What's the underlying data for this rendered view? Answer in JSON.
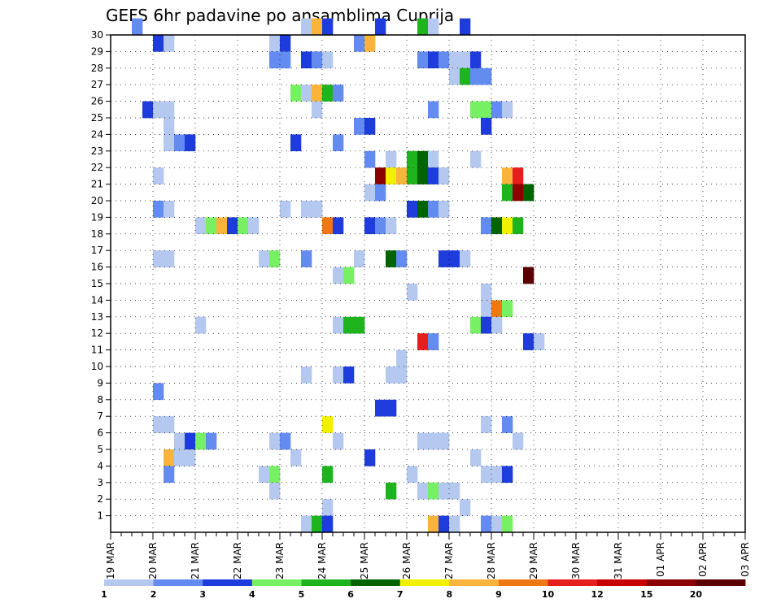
{
  "chart_data": {
    "type": "heatmap",
    "title": "GEFS 6hr padavine po ansamblima Cuprija",
    "x_tick_labels": [
      "19 MAR",
      "20 MAR",
      "21 MAR",
      "22 MAR",
      "23 MAR",
      "24 MAR",
      "25 MAR",
      "26 MAR",
      "27 MAR",
      "28 MAR",
      "29 MAR",
      "30 MAR",
      "31 MAR",
      "01 APR",
      "02 APR",
      "03 APR"
    ],
    "y_tick_labels": [
      "1",
      "2",
      "3",
      "4",
      "5",
      "6",
      "7",
      "8",
      "9",
      "10",
      "11",
      "12",
      "13",
      "14",
      "15",
      "16",
      "17",
      "18",
      "19",
      "20",
      "21",
      "22",
      "23",
      "24",
      "25",
      "26",
      "27",
      "28",
      "29",
      "30"
    ],
    "y_range": [
      0,
      30
    ],
    "x_steps_per_day": 4,
    "grid": true,
    "legend_placement": "bottom",
    "legend_labels": [
      "1",
      "2",
      "3",
      "4",
      "5",
      "6",
      "7",
      "8",
      "9",
      "10",
      "12",
      "15",
      "20"
    ],
    "colors": [
      "#b4c8f0",
      "#648cf0",
      "#1e3cdc",
      "#78f064",
      "#1eb41e",
      "#006400",
      "#f0f000",
      "#fab43c",
      "#f07814",
      "#e61e1e",
      "#c80000",
      "#8c0000",
      "#5a0000"
    ],
    "cells": [
      [
        2,
        30,
        2
      ],
      [
        18,
        30,
        1
      ],
      [
        19,
        30,
        8
      ],
      [
        20,
        30,
        3
      ],
      [
        25,
        30,
        3
      ],
      [
        29,
        30,
        5
      ],
      [
        30,
        30,
        1
      ],
      [
        33,
        30,
        3
      ],
      [
        4,
        29,
        3
      ],
      [
        5,
        29,
        1
      ],
      [
        15,
        29,
        1
      ],
      [
        16,
        29,
        3
      ],
      [
        23,
        29,
        2
      ],
      [
        24,
        29,
        8
      ],
      [
        15,
        28,
        2
      ],
      [
        16,
        28,
        2
      ],
      [
        18,
        28,
        3
      ],
      [
        19,
        28,
        2
      ],
      [
        20,
        28,
        1
      ],
      [
        29,
        28,
        2
      ],
      [
        30,
        28,
        3
      ],
      [
        31,
        28,
        2
      ],
      [
        32,
        28,
        1
      ],
      [
        33,
        28,
        1
      ],
      [
        34,
        28,
        3
      ],
      [
        32,
        27,
        1
      ],
      [
        33,
        27,
        5
      ],
      [
        34,
        27,
        2
      ],
      [
        35,
        27,
        2
      ],
      [
        17,
        26,
        4
      ],
      [
        18,
        26,
        1
      ],
      [
        19,
        26,
        8
      ],
      [
        20,
        26,
        5
      ],
      [
        21,
        26,
        2
      ],
      [
        3,
        25,
        3
      ],
      [
        4,
        25,
        1
      ],
      [
        5,
        25,
        1
      ],
      [
        19,
        25,
        1
      ],
      [
        30,
        25,
        2
      ],
      [
        34,
        25,
        4
      ],
      [
        35,
        25,
        4
      ],
      [
        36,
        25,
        2
      ],
      [
        37,
        25,
        1
      ],
      [
        5,
        24,
        1
      ],
      [
        23,
        24,
        2
      ],
      [
        24,
        24,
        3
      ],
      [
        35,
        24,
        3
      ],
      [
        5,
        23,
        1
      ],
      [
        6,
        23,
        2
      ],
      [
        7,
        23,
        3
      ],
      [
        17,
        23,
        3
      ],
      [
        21,
        23,
        2
      ],
      [
        24,
        22,
        2
      ],
      [
        26,
        22,
        1
      ],
      [
        28,
        22,
        5
      ],
      [
        29,
        22,
        6
      ],
      [
        30,
        22,
        1
      ],
      [
        34,
        22,
        1
      ],
      [
        4,
        21,
        1
      ],
      [
        25,
        21,
        12
      ],
      [
        26,
        21,
        7
      ],
      [
        27,
        21,
        8
      ],
      [
        28,
        21,
        5
      ],
      [
        29,
        21,
        6
      ],
      [
        30,
        21,
        3
      ],
      [
        31,
        21,
        1
      ],
      [
        37,
        21,
        8
      ],
      [
        38,
        21,
        10
      ],
      [
        24,
        20,
        1
      ],
      [
        25,
        20,
        2
      ],
      [
        37,
        20,
        5
      ],
      [
        38,
        20,
        12
      ],
      [
        39,
        20,
        6
      ],
      [
        4,
        19,
        2
      ],
      [
        5,
        19,
        1
      ],
      [
        16,
        19,
        1
      ],
      [
        18,
        19,
        1
      ],
      [
        19,
        19,
        1
      ],
      [
        28,
        19,
        3
      ],
      [
        29,
        19,
        6
      ],
      [
        30,
        19,
        2
      ],
      [
        31,
        19,
        1
      ],
      [
        8,
        18,
        1
      ],
      [
        9,
        18,
        4
      ],
      [
        10,
        18,
        8
      ],
      [
        11,
        18,
        3
      ],
      [
        12,
        18,
        4
      ],
      [
        13,
        18,
        1
      ],
      [
        20,
        18,
        9
      ],
      [
        21,
        18,
        3
      ],
      [
        24,
        18,
        3
      ],
      [
        25,
        18,
        2
      ],
      [
        26,
        18,
        1
      ],
      [
        35,
        18,
        2
      ],
      [
        36,
        18,
        6
      ],
      [
        37,
        18,
        7
      ],
      [
        38,
        18,
        5
      ],
      [
        4,
        16,
        1
      ],
      [
        5,
        16,
        1
      ],
      [
        14,
        16,
        1
      ],
      [
        15,
        16,
        4
      ],
      [
        18,
        16,
        2
      ],
      [
        23,
        16,
        1
      ],
      [
        26,
        16,
        6
      ],
      [
        27,
        16,
        2
      ],
      [
        31,
        16,
        3
      ],
      [
        32,
        16,
        3
      ],
      [
        33,
        16,
        1
      ],
      [
        21,
        15,
        1
      ],
      [
        22,
        15,
        4
      ],
      [
        39,
        15,
        13
      ],
      [
        28,
        14,
        1
      ],
      [
        35,
        14,
        1
      ],
      [
        35,
        13,
        1
      ],
      [
        36,
        13,
        9
      ],
      [
        37,
        13,
        4
      ],
      [
        8,
        12,
        1
      ],
      [
        21,
        12,
        1
      ],
      [
        22,
        12,
        5
      ],
      [
        23,
        12,
        5
      ],
      [
        34,
        12,
        4
      ],
      [
        35,
        12,
        3
      ],
      [
        36,
        12,
        1
      ],
      [
        29,
        11,
        10
      ],
      [
        30,
        11,
        2
      ],
      [
        39,
        11,
        3
      ],
      [
        40,
        11,
        1
      ],
      [
        27,
        10,
        1
      ],
      [
        18,
        9,
        1
      ],
      [
        21,
        9,
        1
      ],
      [
        22,
        9,
        3
      ],
      [
        26,
        9,
        1
      ],
      [
        27,
        9,
        1
      ],
      [
        4,
        8,
        2
      ],
      [
        25,
        7,
        3
      ],
      [
        26,
        7,
        3
      ],
      [
        4,
        6,
        1
      ],
      [
        5,
        6,
        1
      ],
      [
        20,
        6,
        7
      ],
      [
        35,
        6,
        1
      ],
      [
        37,
        6,
        2
      ],
      [
        6,
        5,
        1
      ],
      [
        7,
        5,
        3
      ],
      [
        8,
        5,
        4
      ],
      [
        9,
        5,
        2
      ],
      [
        15,
        5,
        1
      ],
      [
        16,
        5,
        2
      ],
      [
        21,
        5,
        1
      ],
      [
        29,
        5,
        1
      ],
      [
        30,
        5,
        1
      ],
      [
        31,
        5,
        1
      ],
      [
        38,
        5,
        1
      ],
      [
        5,
        4,
        8
      ],
      [
        6,
        4,
        1
      ],
      [
        7,
        4,
        1
      ],
      [
        17,
        4,
        1
      ],
      [
        24,
        4,
        3
      ],
      [
        34,
        4,
        1
      ],
      [
        5,
        3,
        2
      ],
      [
        14,
        3,
        1
      ],
      [
        15,
        3,
        4
      ],
      [
        20,
        3,
        5
      ],
      [
        28,
        3,
        1
      ],
      [
        35,
        3,
        1
      ],
      [
        36,
        3,
        1
      ],
      [
        37,
        3,
        3
      ],
      [
        15,
        2,
        1
      ],
      [
        26,
        2,
        5
      ],
      [
        29,
        2,
        1
      ],
      [
        30,
        2,
        4
      ],
      [
        31,
        2,
        1
      ],
      [
        32,
        2,
        1
      ],
      [
        20,
        1,
        1
      ],
      [
        33,
        1,
        1
      ],
      [
        18,
        0,
        1
      ],
      [
        19,
        0,
        5
      ],
      [
        20,
        0,
        3
      ],
      [
        30,
        0,
        8
      ],
      [
        31,
        0,
        3
      ],
      [
        32,
        0,
        1
      ],
      [
        35,
        0,
        2
      ],
      [
        36,
        0,
        1
      ],
      [
        37,
        0,
        4
      ]
    ]
  }
}
